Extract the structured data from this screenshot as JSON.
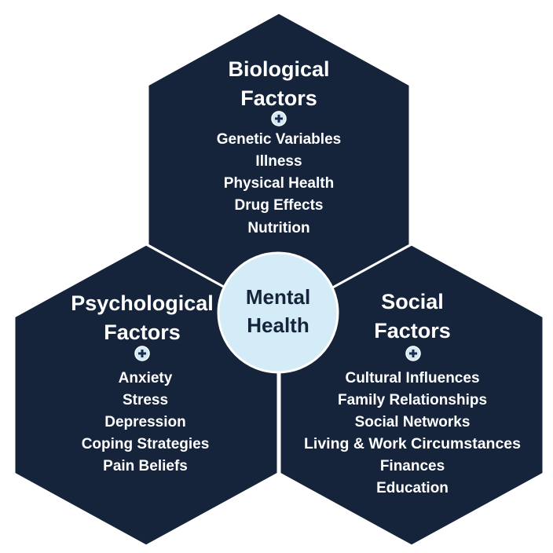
{
  "center": {
    "line1": "Mental",
    "line2": "Health"
  },
  "factors": [
    {
      "title_line1": "Biological",
      "title_line2": "Factors",
      "items": [
        "Genetic Variables",
        "Illness",
        "Physical Health",
        "Drug Effects",
        "Nutrition"
      ]
    },
    {
      "title_line1": "Psychological",
      "title_line2": "Factors",
      "items": [
        "Anxiety",
        "Stress",
        "Depression",
        "Coping Strategies",
        "Pain Beliefs"
      ]
    },
    {
      "title_line1": "Social",
      "title_line2": "Factors",
      "items": [
        "Cultural Influences",
        "Family Relationships",
        "Social Networks",
        "Living & Work Circumstances",
        "Finances",
        "Education"
      ]
    }
  ],
  "icons": {
    "factor_marker": "plus-circle-icon"
  },
  "colors": {
    "hexagon_fill": "#15243b",
    "center_fill": "#d3ecf7",
    "center_text": "#15243b",
    "text": "#ffffff",
    "marker_fill": "#cfe9f5"
  }
}
